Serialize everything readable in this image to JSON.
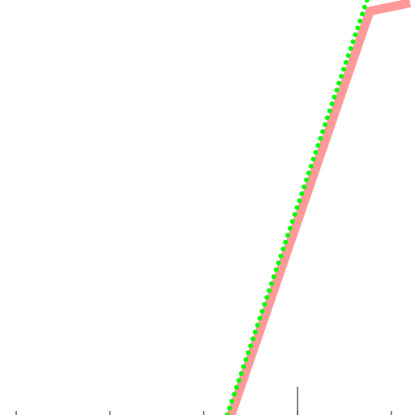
{
  "chart_data": {
    "type": "line",
    "title": "",
    "xlabel": "",
    "ylabel": "",
    "grid": false,
    "legend": "none",
    "xlim": [
      0,
      4.2
    ],
    "ylim": [
      0,
      1.0
    ],
    "x_ticks": [
      0,
      1,
      2,
      3,
      4
    ],
    "series": [
      {
        "style": "solid",
        "color": "#ff9999",
        "x": [
          2.29,
          3.77,
          4.2
        ],
        "y": [
          0.0,
          0.973,
          0.993
        ]
      },
      {
        "style": "dotted",
        "color": "#00ff00",
        "x": [
          2.25,
          3.74
        ],
        "y": [
          0.0,
          1.0
        ]
      }
    ],
    "marker": {
      "x": 3.0,
      "color": "#000000"
    }
  }
}
